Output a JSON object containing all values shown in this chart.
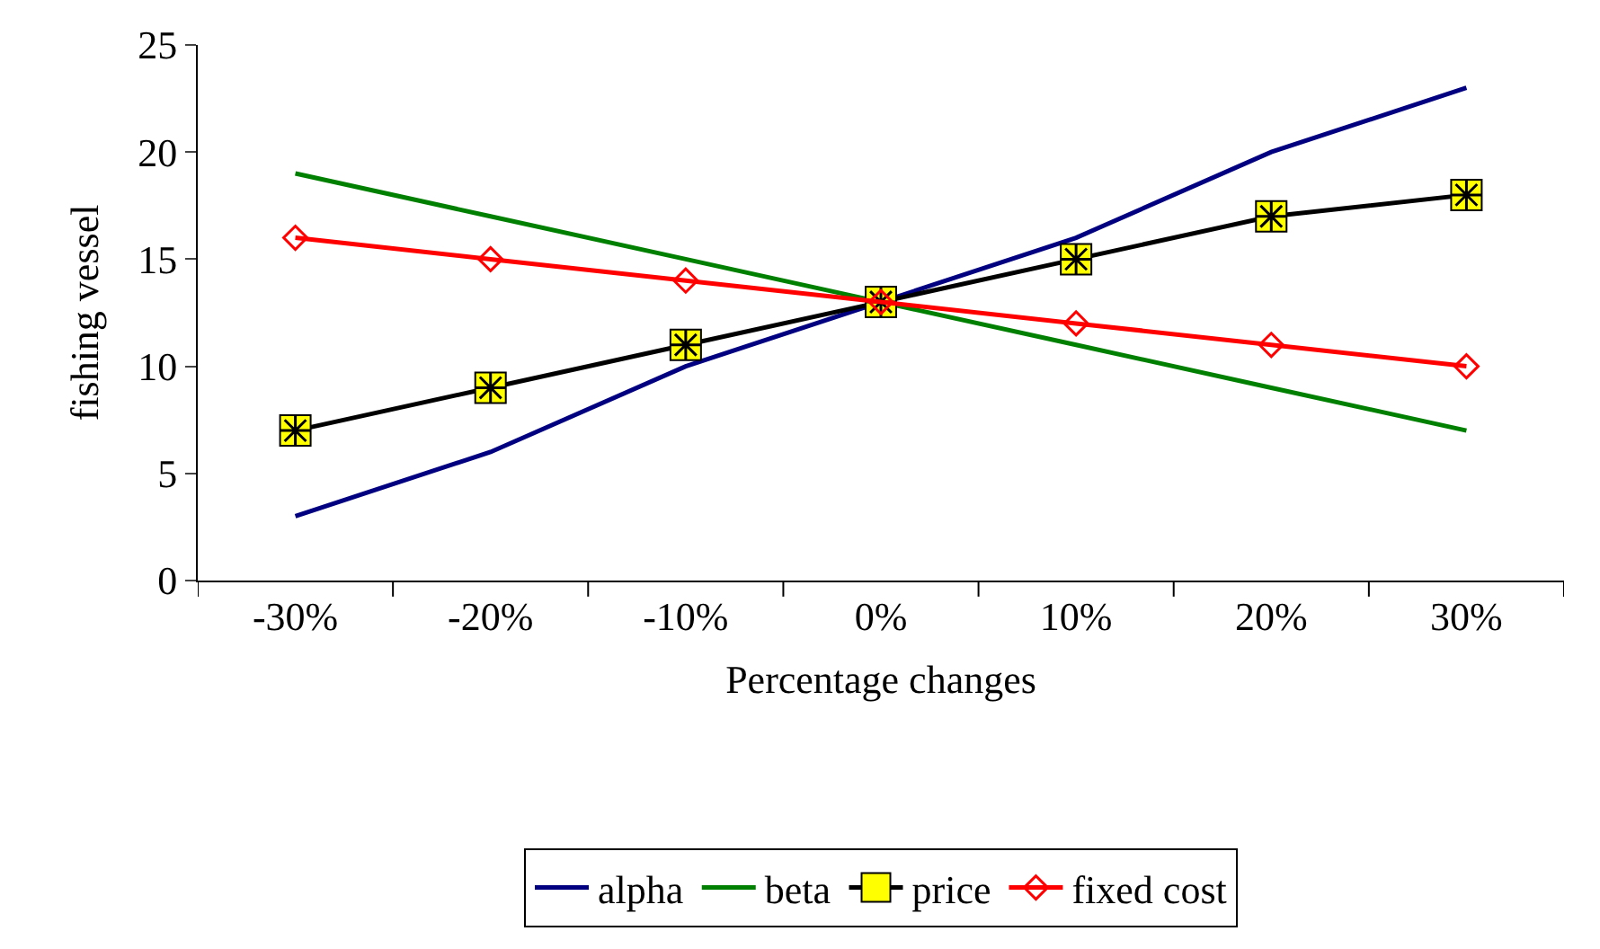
{
  "chart_data": {
    "type": "line",
    "xlabel": "Percentage changes",
    "ylabel": "fishing vessel",
    "categories": [
      "-30%",
      "-20%",
      "-10%",
      "0%",
      "10%",
      "20%",
      "30%"
    ],
    "series": [
      {
        "name": "alpha",
        "color": "#000080",
        "values": [
          3,
          6,
          10,
          13,
          16,
          20,
          23
        ],
        "marker": "none"
      },
      {
        "name": "beta",
        "color": "#008000",
        "values": [
          19,
          17,
          15,
          13,
          11,
          9,
          7
        ],
        "marker": "none"
      },
      {
        "name": "price",
        "color": "#000000",
        "values": [
          7,
          9,
          11,
          13,
          15,
          17,
          18
        ],
        "marker": "square"
      },
      {
        "name": "fixed cost",
        "color": "#ff0000",
        "values": [
          16,
          15,
          14,
          13,
          12,
          11,
          10
        ],
        "marker": "diamond"
      }
    ],
    "ylim": [
      0,
      25
    ],
    "yticks": [
      0,
      5,
      10,
      15,
      20,
      25
    ],
    "grid": false,
    "legend": "bottom",
    "line_style": "solid"
  }
}
